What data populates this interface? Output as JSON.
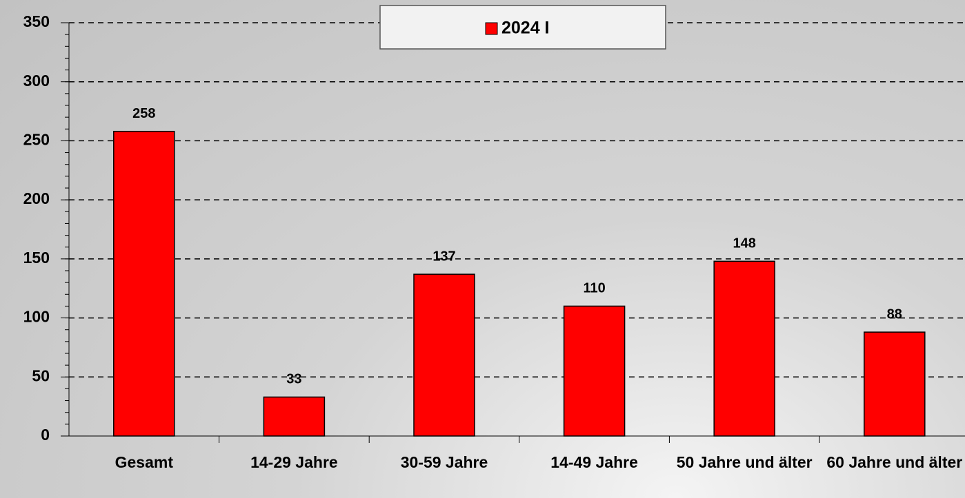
{
  "chart_data": {
    "type": "bar",
    "categories": [
      "Gesamt",
      "14-29 Jahre",
      "30-59 Jahre",
      "14-49 Jahre",
      "50 Jahre und älter",
      "60 Jahre und älter"
    ],
    "series": [
      {
        "name": "2024 I",
        "color": "#ff0000",
        "values": [
          258,
          33,
          137,
          110,
          148,
          88
        ]
      }
    ],
    "ylim": [
      0,
      350
    ],
    "yticks": [
      0,
      50,
      100,
      150,
      200,
      250,
      300,
      350
    ],
    "grid": true,
    "legend": "top"
  }
}
